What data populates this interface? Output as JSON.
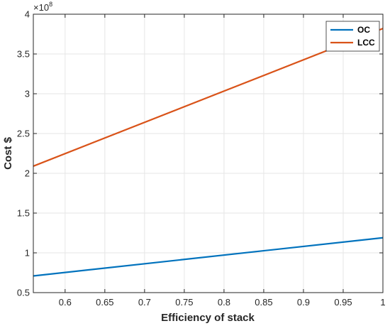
{
  "chart_data": {
    "type": "line",
    "title": "",
    "xlabel": "Efficiency of stack",
    "ylabel": "Cost $",
    "y_exponent_label": "×10",
    "y_exponent_power": "8",
    "xlim": [
      0.56,
      1.0
    ],
    "ylim": [
      0.5,
      4.0
    ],
    "xticks": [
      0.6,
      0.65,
      0.7,
      0.75,
      0.8,
      0.85,
      0.9,
      0.95,
      1
    ],
    "xtick_labels": [
      "0.6",
      "0.65",
      "0.7",
      "0.75",
      "0.8",
      "0.85",
      "0.9",
      "0.95",
      "1"
    ],
    "yticks": [
      0.5,
      1,
      1.5,
      2,
      2.5,
      3,
      3.5,
      4
    ],
    "ytick_labels": [
      "0.5",
      "1",
      "1.5",
      "2",
      "2.5",
      "3",
      "3.5",
      "4"
    ],
    "grid": true,
    "legend_position": "top-right",
    "series": [
      {
        "name": "OC",
        "color": "#0072BD",
        "x": [
          0.56,
          1.0
        ],
        "y": [
          0.71,
          1.19
        ]
      },
      {
        "name": "LCC",
        "color": "#D95319",
        "x": [
          0.56,
          1.0
        ],
        "y": [
          2.09,
          3.82
        ]
      }
    ]
  }
}
